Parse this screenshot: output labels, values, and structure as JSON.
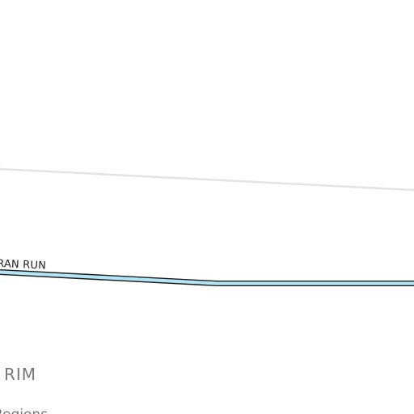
{
  "map": {
    "colors": {
      "background": "#ffffff",
      "minor_road": "#e6e6e6",
      "highlighted_road_fill": "#b3e6f5",
      "highlighted_road_casing": "#1a1a1a",
      "street_label": "#222222",
      "area_label": "#777777"
    },
    "roads": [
      {
        "kind": "minor-road"
      },
      {
        "kind": "highlighted-road",
        "label": "RAN RUN"
      }
    ],
    "labels": {
      "street": "RAN RUN",
      "area": "RIM",
      "region": "Regions"
    }
  }
}
